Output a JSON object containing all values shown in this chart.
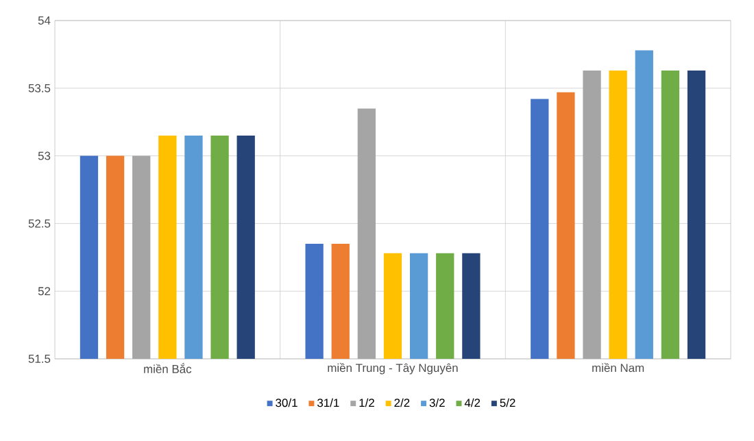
{
  "chart_data": {
    "type": "bar",
    "categories": [
      "miền Bắc",
      "miền Trung - Tây Nguyên",
      "miền Nam"
    ],
    "series": [
      {
        "name": "30/1",
        "color": "#4472c4",
        "values": [
          53.0,
          52.35,
          53.42
        ]
      },
      {
        "name": "31/1",
        "color": "#ed7d31",
        "values": [
          53.0,
          52.35,
          53.47
        ]
      },
      {
        "name": "1/2",
        "color": "#a5a5a5",
        "values": [
          53.0,
          53.35,
          53.63
        ]
      },
      {
        "name": "2/2",
        "color": "#ffc000",
        "values": [
          53.15,
          52.28,
          53.63
        ]
      },
      {
        "name": "3/2",
        "color": "#5b9bd5",
        "values": [
          53.15,
          52.28,
          53.78
        ]
      },
      {
        "name": "4/2",
        "color": "#70ad47",
        "values": [
          53.15,
          52.28,
          53.63
        ]
      },
      {
        "name": "5/2",
        "color": "#264478",
        "values": [
          53.15,
          52.28,
          53.63
        ]
      }
    ],
    "ylim": [
      51.5,
      54
    ],
    "yticks": [
      51.5,
      52,
      52.5,
      53,
      53.5,
      54
    ],
    "grid": true,
    "legend": "bottom"
  }
}
